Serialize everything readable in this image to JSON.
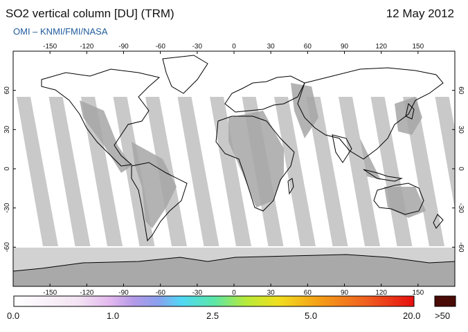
{
  "header": {
    "title": "SO2 vertical column [DU] (TRM)",
    "date": "12 May 2012",
    "credit": "OMI  –  KNMI/FMI/NASA"
  },
  "map": {
    "lon_ticks": [
      -150,
      -120,
      -90,
      -60,
      -30,
      0,
      30,
      60,
      90,
      120,
      150
    ],
    "lat_ticks": [
      60,
      30,
      0,
      -30,
      -60
    ],
    "lon_range": [
      -180,
      180
    ],
    "lat_range": [
      -90,
      90
    ]
  },
  "colorbar": {
    "labels": [
      "0.0",
      "1.0",
      "2.5",
      "5.0",
      "20.0"
    ],
    "overflow_label": ">50",
    "overflow_color": "#4a0a06"
  }
}
